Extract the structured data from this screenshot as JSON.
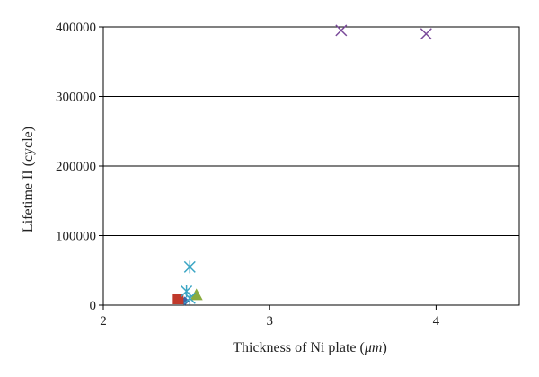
{
  "chart_data": {
    "type": "scatter",
    "xlabel_prefix": "Thickness of Ni plate (",
    "xlabel_unit": "μm",
    "xlabel_suffix": ")",
    "ylabel": "Lifetime II (cycle)",
    "xlim": [
      2,
      4.5
    ],
    "ylim": [
      0,
      400000
    ],
    "xticks": [
      2,
      3,
      4
    ],
    "yticks": [
      0,
      100000,
      200000,
      300000,
      400000
    ],
    "xtick_labels": [
      "2",
      "3",
      "4"
    ],
    "ytick_labels": [
      "0",
      "100000",
      "200000",
      "300000",
      "400000"
    ],
    "grid": "horizontal",
    "legend": "none",
    "series": [
      {
        "marker": "diamond",
        "color": "#3a64a8",
        "points": [
          {
            "x": 2.49,
            "y": 6000
          }
        ]
      },
      {
        "marker": "square",
        "color": "#c0392b",
        "points": [
          {
            "x": 2.45,
            "y": 9000
          }
        ]
      },
      {
        "marker": "triangle",
        "color": "#8aac3f",
        "points": [
          {
            "x": 2.56,
            "y": 15000
          }
        ]
      },
      {
        "marker": "asterisk",
        "color": "#3aa5c4",
        "points": [
          {
            "x": 2.52,
            "y": 55000
          },
          {
            "x": 2.5,
            "y": 20000
          },
          {
            "x": 2.52,
            "y": 10000
          }
        ]
      },
      {
        "marker": "x",
        "color": "#7a4a9a",
        "points": [
          {
            "x": 3.43,
            "y": 395000
          },
          {
            "x": 3.94,
            "y": 390000
          }
        ]
      }
    ]
  }
}
